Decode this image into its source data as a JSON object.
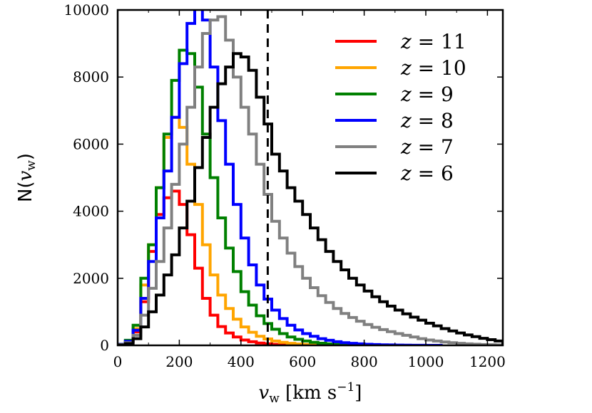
{
  "chart_data": {
    "type": "histogram",
    "xlabel": "v_w [km s^-1]",
    "xlabel_parts": {
      "var": "v",
      "sub": "w",
      "units": "[km s",
      "exp": "−1",
      "close": "]"
    },
    "ylabel_parts": {
      "prefix": "N(",
      "var": "v",
      "sub": "w",
      "suffix": ")"
    },
    "xlim": [
      0,
      1250
    ],
    "ylim": [
      0,
      10000
    ],
    "xticks": [
      0,
      200,
      400,
      600,
      800,
      1000,
      1200
    ],
    "yticks": [
      0,
      2000,
      4000,
      6000,
      8000,
      10000
    ],
    "xtick_labels": [
      "0",
      "200",
      "400",
      "600",
      "800",
      "1000",
      "1200"
    ],
    "ytick_labels": [
      "0",
      "2000",
      "4000",
      "6000",
      "8000",
      "10000"
    ],
    "vline": {
      "x": 487,
      "style": "dashed",
      "color": "#000000"
    },
    "legend_position": "upper-right",
    "bin_edges_start": 0,
    "bin_width": 25,
    "series": [
      {
        "name": "z = 11",
        "label_var": "z",
        "label_eq": "= 11",
        "color": "#ff0000",
        "values": [
          30,
          100,
          400,
          1300,
          2800,
          3900,
          4400,
          4600,
          4200,
          3300,
          2300,
          1400,
          900,
          560,
          370,
          250,
          160,
          110,
          70,
          45,
          30,
          20,
          12,
          8,
          5,
          3,
          2,
          1,
          1,
          0
        ]
      },
      {
        "name": "z = 10",
        "label_var": "z",
        "label_eq": "= 10",
        "color": "#ffa500",
        "values": [
          30,
          120,
          500,
          1800,
          3000,
          4700,
          6200,
          6800,
          6500,
          5400,
          4200,
          3000,
          2100,
          1500,
          1100,
          780,
          550,
          390,
          270,
          190,
          130,
          90,
          60,
          40,
          27,
          18,
          12,
          8,
          5,
          3,
          2,
          1
        ]
      },
      {
        "name": "z = 9",
        "label_var": "z",
        "label_eq": "= 9",
        "color": "#008000",
        "values": [
          30,
          150,
          600,
          2000,
          3000,
          4700,
          6300,
          7900,
          8800,
          8700,
          7700,
          6300,
          5000,
          3800,
          2900,
          2200,
          1600,
          1200,
          880,
          650,
          480,
          350,
          250,
          180,
          130,
          90,
          65,
          45,
          30,
          20,
          12,
          8,
          5,
          3,
          2,
          1,
          1
        ]
      },
      {
        "name": "z = 8",
        "label_var": "z",
        "label_eq": "= 8",
        "color": "#0000ff",
        "values": [
          30,
          120,
          450,
          1400,
          2500,
          3800,
          5200,
          6800,
          8400,
          9600,
          10100,
          9700,
          8300,
          6700,
          5400,
          4200,
          3200,
          2400,
          1800,
          1380,
          1050,
          800,
          600,
          460,
          350,
          270,
          200,
          150,
          110,
          80,
          60,
          45,
          33,
          24,
          17,
          12,
          8,
          5,
          3,
          2,
          1,
          1
        ]
      },
      {
        "name": "z = 7",
        "label_var": "z",
        "label_eq": "= 7",
        "color": "#808080",
        "values": [
          20,
          80,
          300,
          900,
          1700,
          2500,
          3500,
          4800,
          6000,
          7100,
          8300,
          9300,
          9700,
          9800,
          9100,
          8000,
          7100,
          6300,
          5400,
          4500,
          3700,
          3200,
          2750,
          2350,
          2000,
          1720,
          1480,
          1280,
          1100,
          950,
          830,
          720,
          620,
          540,
          470,
          410,
          350,
          300,
          250,
          200,
          160,
          130,
          100,
          80,
          60,
          45,
          35,
          25,
          18,
          12
        ]
      },
      {
        "name": "z = 6",
        "label_var": "z",
        "label_eq": "= 6",
        "color": "#000000",
        "values": [
          10,
          50,
          200,
          550,
          1000,
          1500,
          2100,
          2700,
          3500,
          4300,
          5300,
          6200,
          7100,
          7800,
          8300,
          8700,
          8600,
          8200,
          7400,
          6600,
          5700,
          5200,
          4700,
          4300,
          3900,
          3500,
          3150,
          2800,
          2500,
          2250,
          2000,
          1800,
          1620,
          1450,
          1300,
          1170,
          1050,
          940,
          840,
          750,
          660,
          580,
          500,
          430,
          370,
          310,
          260,
          210,
          170,
          130
        ]
      }
    ]
  }
}
